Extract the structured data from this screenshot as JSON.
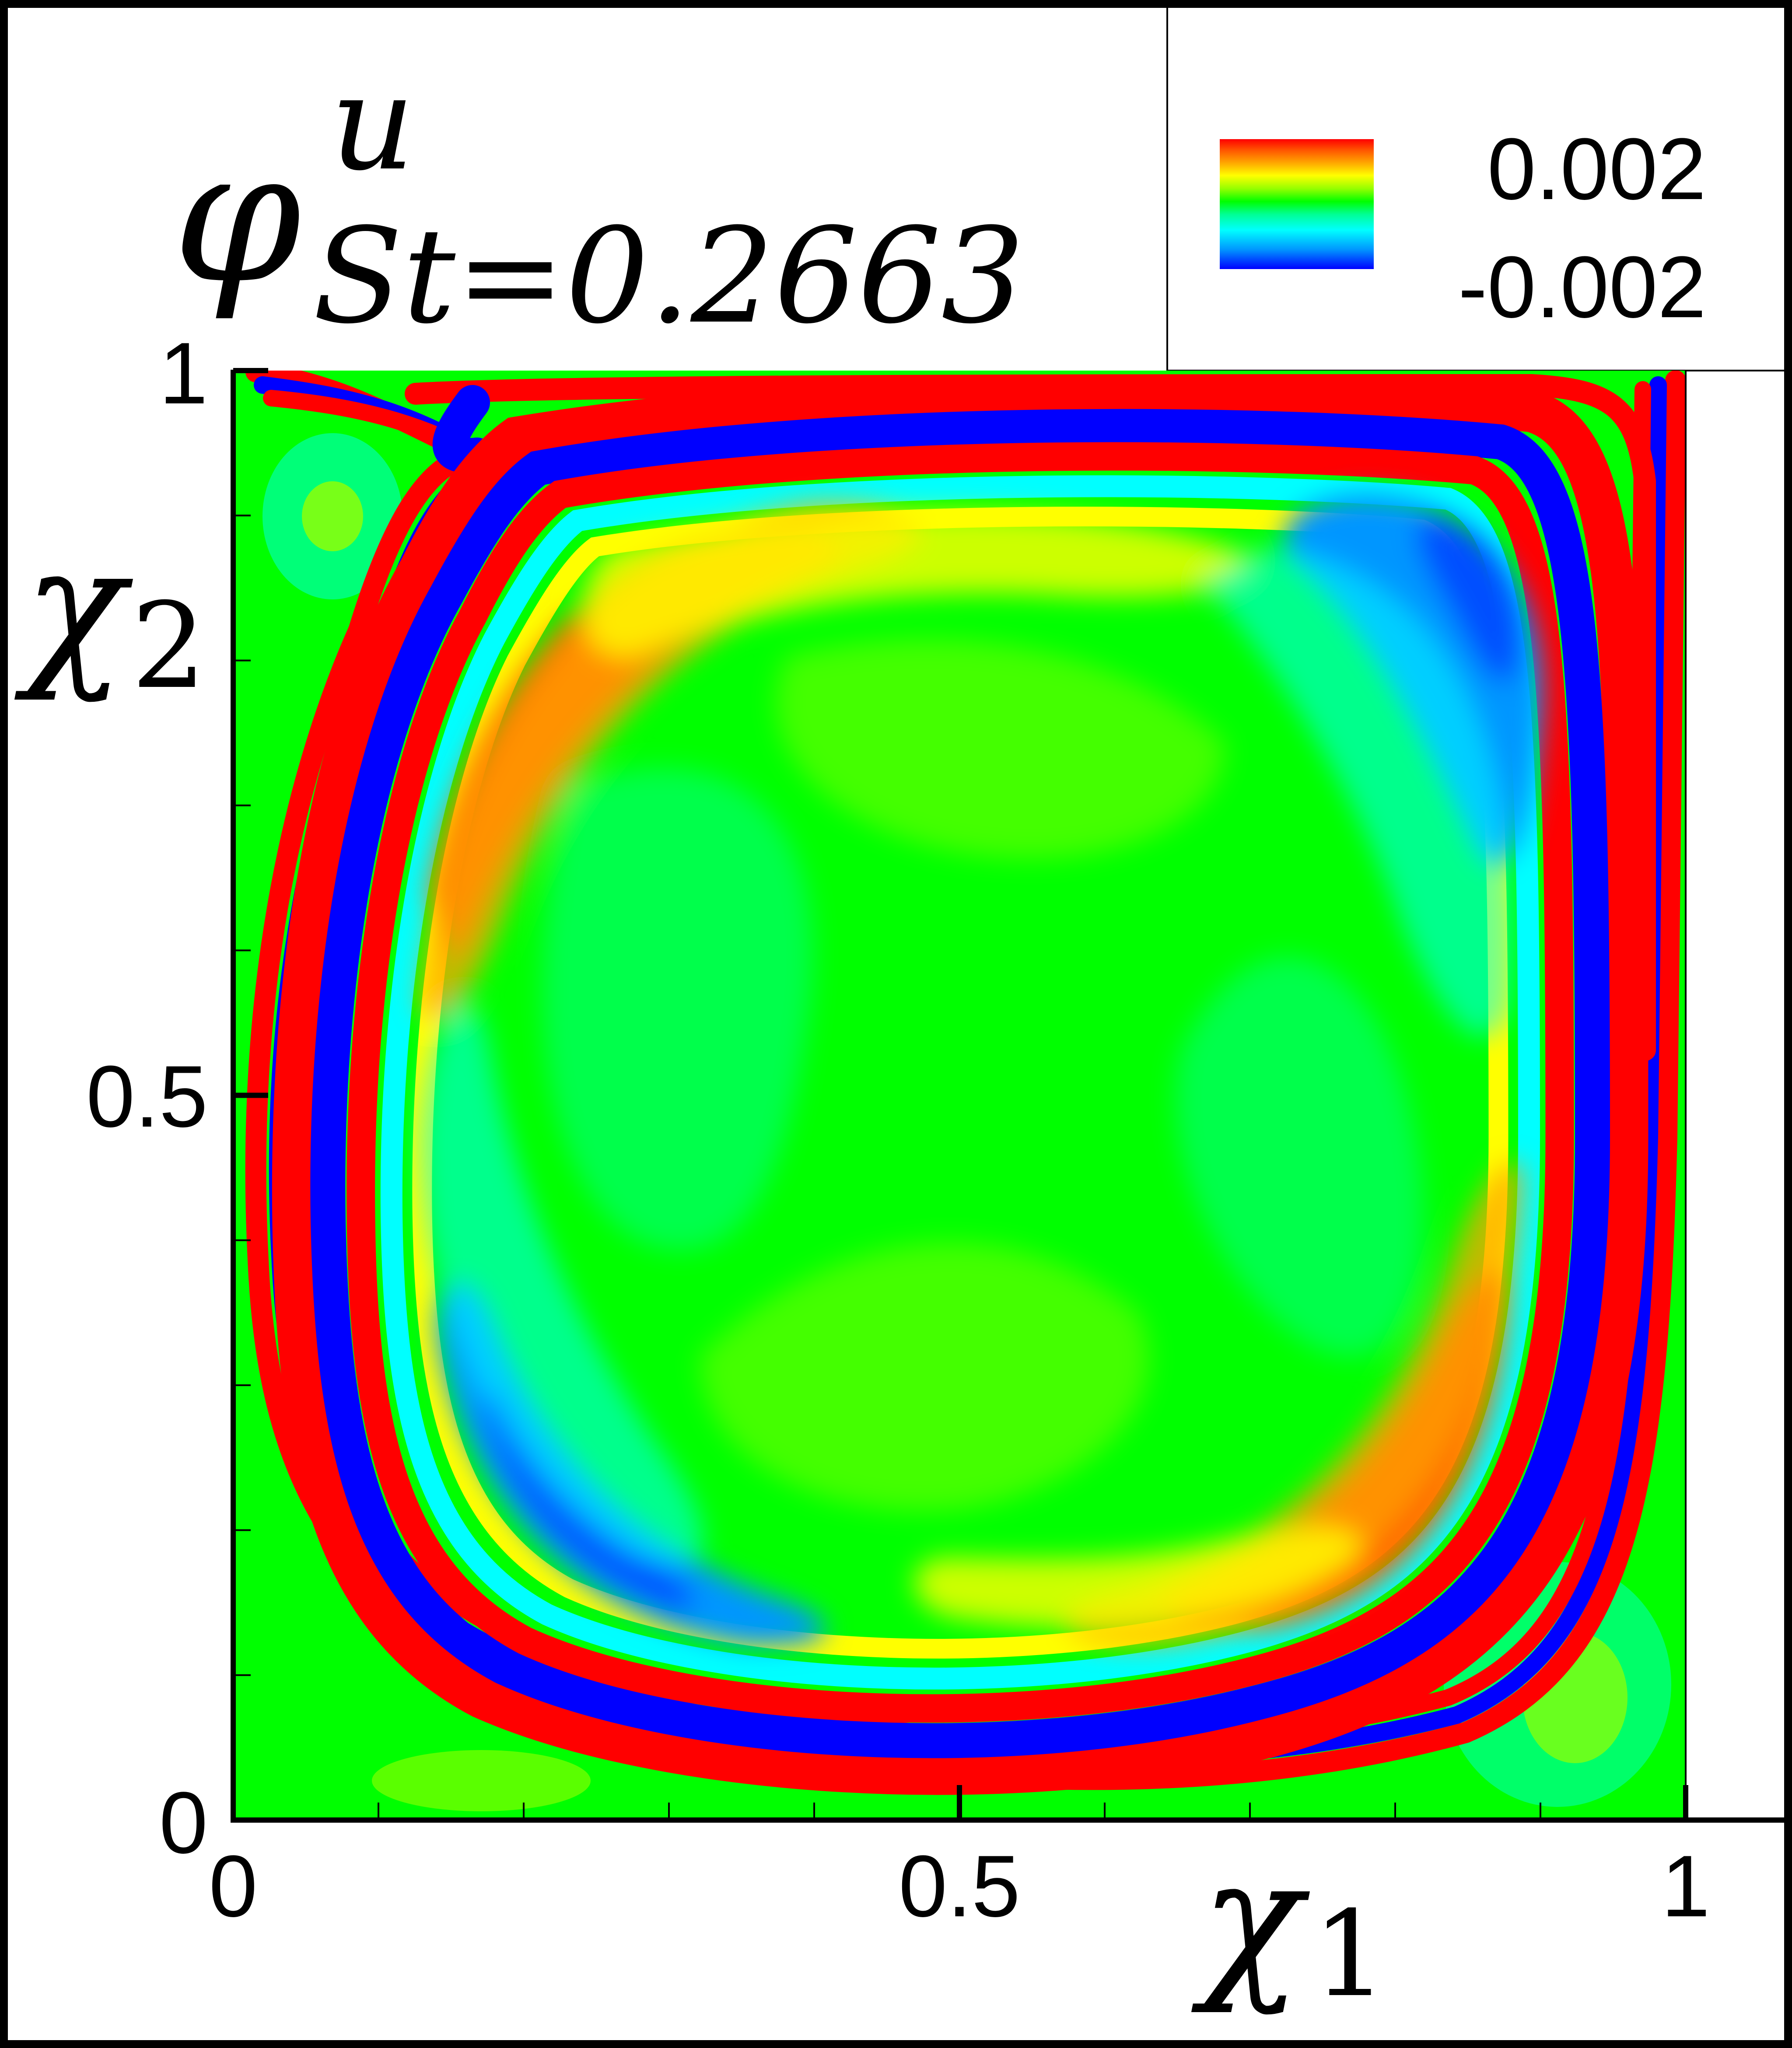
{
  "chart_data": {
    "type": "heatmap",
    "title": {
      "symbol": "φ",
      "superscript": "u",
      "subscript": "St=0.2663"
    },
    "xlabel": {
      "symbol": "χ",
      "index": "1"
    },
    "ylabel": {
      "symbol": "χ",
      "index": "2"
    },
    "xlim": [
      0,
      1
    ],
    "ylim": [
      0,
      1
    ],
    "x_ticks": [
      {
        "value": 0,
        "label": "0"
      },
      {
        "value": 0.5,
        "label": "0.5"
      },
      {
        "value": 1,
        "label": "1"
      }
    ],
    "y_ticks": [
      {
        "value": 0,
        "label": "0"
      },
      {
        "value": 0.5,
        "label": "0.5"
      },
      {
        "value": 1,
        "label": "1"
      }
    ],
    "minor_tick_step": 0.1,
    "colorbar": {
      "max_label": "0.002",
      "min_label": "-0.002",
      "max": 0.002,
      "min": -0.002,
      "colors": [
        "#0000ff",
        "#0096ff",
        "#00ffff",
        "#00ff96",
        "#00ff00",
        "#96ff00",
        "#ffff00",
        "#ffa500",
        "#ff5a00",
        "#ff0000"
      ]
    },
    "grid": false,
    "legend_position": "top-right",
    "background_value_color": "#00ff00"
  }
}
